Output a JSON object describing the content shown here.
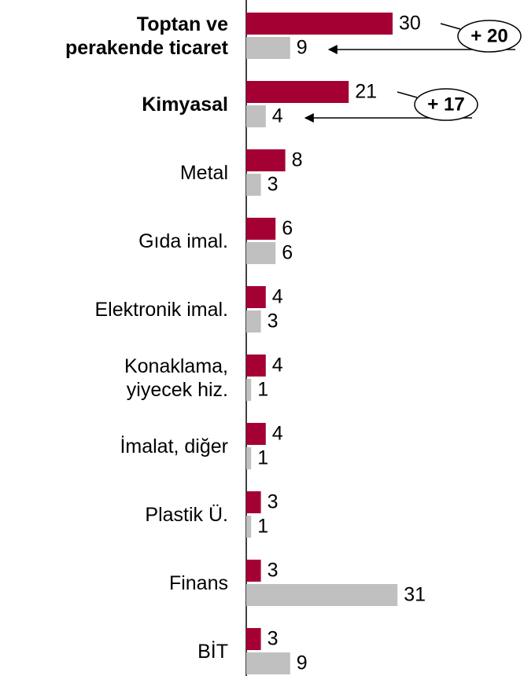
{
  "chart_data": {
    "type": "bar",
    "orientation": "horizontal",
    "categories": [
      "Toptan ve\nperakende ticaret",
      "Kimyasal",
      "Metal",
      "Gıda imal.",
      "Elektronik imal.",
      "Konaklama,\nyiyecek hiz.",
      "İmalat, diğer",
      "Plastik Ü.",
      "Finans",
      "BİT"
    ],
    "series": [
      {
        "color": "#a50034",
        "values": [
          30,
          21,
          8,
          6,
          4,
          4,
          4,
          3,
          3,
          3
        ]
      },
      {
        "color": "#c0c0c0",
        "values": [
          9,
          4,
          3,
          6,
          3,
          1,
          1,
          1,
          31,
          9
        ]
      }
    ],
    "xlim": [
      0,
      30
    ],
    "annotations": [
      "+ 20",
      "+ 17"
    ]
  }
}
